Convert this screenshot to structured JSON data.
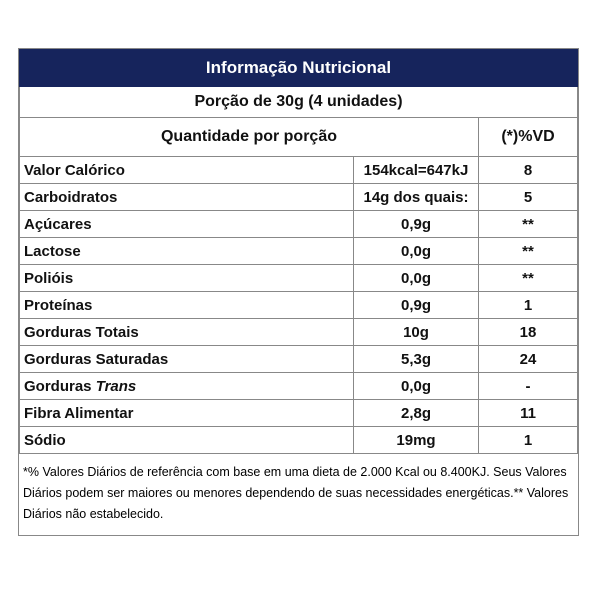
{
  "header": {
    "title": "Informação Nutricional",
    "portion": "Porção de 30g (4 unidades)"
  },
  "table": {
    "columns": [
      "Quantidade por porção",
      "(*)%VD"
    ],
    "rows": [
      {
        "name": "Valor Calórico",
        "amount": "154kcal=647kJ",
        "vd": "8"
      },
      {
        "name": "Carboidratos",
        "amount": "14g dos quais:",
        "vd": "5"
      },
      {
        "name": "Açúcares",
        "amount": "0,9g",
        "vd": "**"
      },
      {
        "name": "Lactose",
        "amount": "0,0g",
        "vd": "**"
      },
      {
        "name": "Polióis",
        "amount": "0,0g",
        "vd": "**"
      },
      {
        "name": "Proteínas",
        "amount": "0,9g",
        "vd": "1"
      },
      {
        "name": "Gorduras Totais",
        "amount": "10g",
        "vd": "18"
      },
      {
        "name": "Gorduras Saturadas",
        "amount": "5,3g",
        "vd": "24"
      },
      {
        "name": "Gorduras",
        "name_italic": "Trans",
        "amount": "0,0g",
        "vd": "-"
      },
      {
        "name": "Fibra Alimentar",
        "amount": "2,8g",
        "vd": "11"
      },
      {
        "name": "Sódio",
        "amount": "19mg",
        "vd": "1"
      }
    ]
  },
  "footnote": "*% Valores Diários de referência com base em uma dieta de 2.000 Kcal ou 8.400KJ. Seus Valores Diários podem ser maiores ou menores dependendo de suas necessidades energéticas.** Valores Diários não estabelecido."
}
